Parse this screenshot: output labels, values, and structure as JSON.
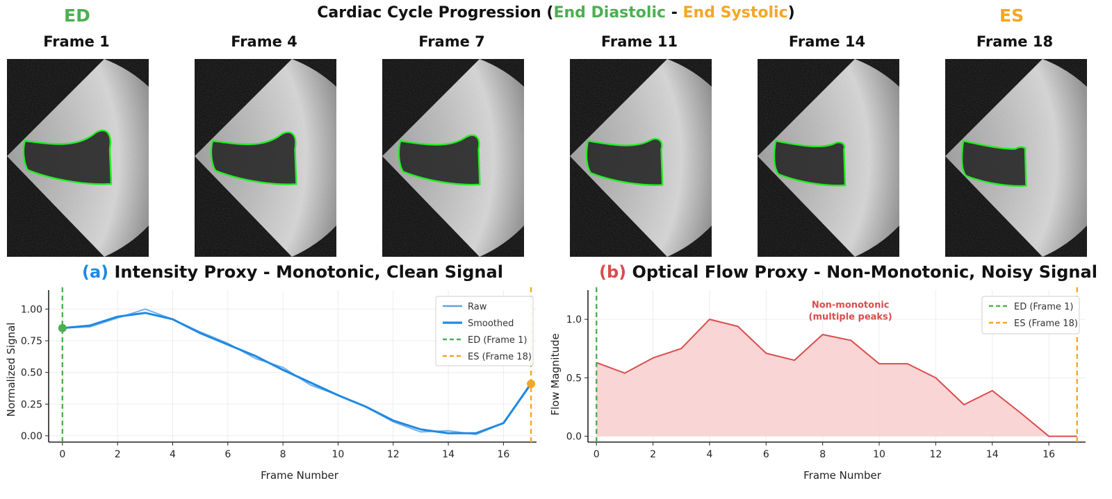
{
  "header": {
    "title_prefix": "Cardiac Cycle Progression (",
    "title_ed": "End Diastolic",
    "title_sep": " - ",
    "title_es": "End Systolic",
    "title_suffix": ")",
    "ed_label": "ED",
    "es_label": "ES"
  },
  "colors": {
    "green": "#4caf50",
    "orange": "#f5a623",
    "blue": "#1e88e5",
    "light_blue": "#5ba4e6",
    "red": "#d94c4c",
    "red_fill": "#f8d0d0",
    "contour": "#22ee22"
  },
  "frames": [
    {
      "label": "Frame 1",
      "scale": 1.0
    },
    {
      "label": "Frame 4",
      "scale": 0.97
    },
    {
      "label": "Frame 7",
      "scale": 0.92
    },
    {
      "label": "Frame 11",
      "scale": 0.86
    },
    {
      "label": "Frame 14",
      "scale": 0.8
    },
    {
      "label": "Frame 18",
      "scale": 0.72
    }
  ],
  "panel_a": {
    "letter": "(a)",
    "title": " Intensity Proxy - Monotonic, Clean Signal"
  },
  "panel_b": {
    "letter": "(b)",
    "title": " Optical Flow Proxy - Non-Monotonic, Noisy Signal"
  },
  "chart_data": [
    {
      "type": "line",
      "xlabel": "Frame Number",
      "ylabel": "Normalized Signal",
      "xlim": [
        -0.5,
        17.2
      ],
      "ylim": [
        -0.05,
        1.15
      ],
      "xticks": [
        0,
        2,
        4,
        6,
        8,
        10,
        12,
        14,
        16
      ],
      "yticks": [
        0.0,
        0.25,
        0.5,
        0.75,
        1.0
      ],
      "ytick_labels": [
        "0.00",
        "0.25",
        "0.50",
        "0.75",
        "1.00"
      ],
      "grid": true,
      "legend_position": "top-right",
      "x": [
        0,
        1,
        2,
        3,
        4,
        5,
        6,
        7,
        8,
        9,
        10,
        11,
        12,
        13,
        14,
        15,
        16,
        17
      ],
      "series": [
        {
          "name": "Raw",
          "values": [
            0.85,
            0.86,
            0.93,
            1.0,
            0.92,
            0.82,
            0.73,
            0.61,
            0.54,
            0.4,
            0.32,
            0.23,
            0.11,
            0.03,
            0.04,
            0.01,
            0.1,
            0.42
          ]
        },
        {
          "name": "Smoothed",
          "values": [
            0.85,
            0.87,
            0.94,
            0.97,
            0.92,
            0.81,
            0.72,
            0.63,
            0.52,
            0.42,
            0.32,
            0.23,
            0.12,
            0.05,
            0.02,
            0.02,
            0.1,
            0.41
          ]
        }
      ],
      "vlines": [
        {
          "name": "ED (Frame 1)",
          "x": 0
        },
        {
          "name": "ES (Frame 18)",
          "x": 17
        }
      ],
      "markers": [
        {
          "x": 0,
          "y": 0.85
        },
        {
          "x": 17,
          "y": 0.41
        }
      ]
    },
    {
      "type": "area",
      "xlabel": "Frame Number",
      "ylabel": "Flow Magnitude",
      "xlim": [
        -0.3,
        17.3
      ],
      "ylim": [
        -0.05,
        1.25
      ],
      "xticks": [
        0,
        2,
        4,
        6,
        8,
        10,
        12,
        14,
        16
      ],
      "yticks": [
        0.0,
        0.5,
        1.0
      ],
      "ytick_labels": [
        "0.0",
        "0.5",
        "1.0"
      ],
      "grid": true,
      "legend_position": "top-right",
      "x": [
        0,
        1,
        2,
        3,
        4,
        5,
        6,
        7,
        8,
        9,
        10,
        11,
        12,
        13,
        14,
        15,
        16,
        17
      ],
      "values": [
        0.63,
        0.54,
        0.67,
        0.75,
        1.0,
        0.94,
        0.71,
        0.65,
        0.87,
        0.82,
        0.62,
        0.62,
        0.5,
        0.27,
        0.39,
        0.2,
        0.0,
        0.0
      ],
      "vlines": [
        {
          "name": "ED (Frame 1)",
          "x": 0
        },
        {
          "name": "ES (Frame 18)",
          "x": 17
        }
      ],
      "annotation": {
        "line1": "Non-monotonic",
        "line2": "(multiple peaks)",
        "x": 8,
        "y": 1.05
      }
    }
  ]
}
